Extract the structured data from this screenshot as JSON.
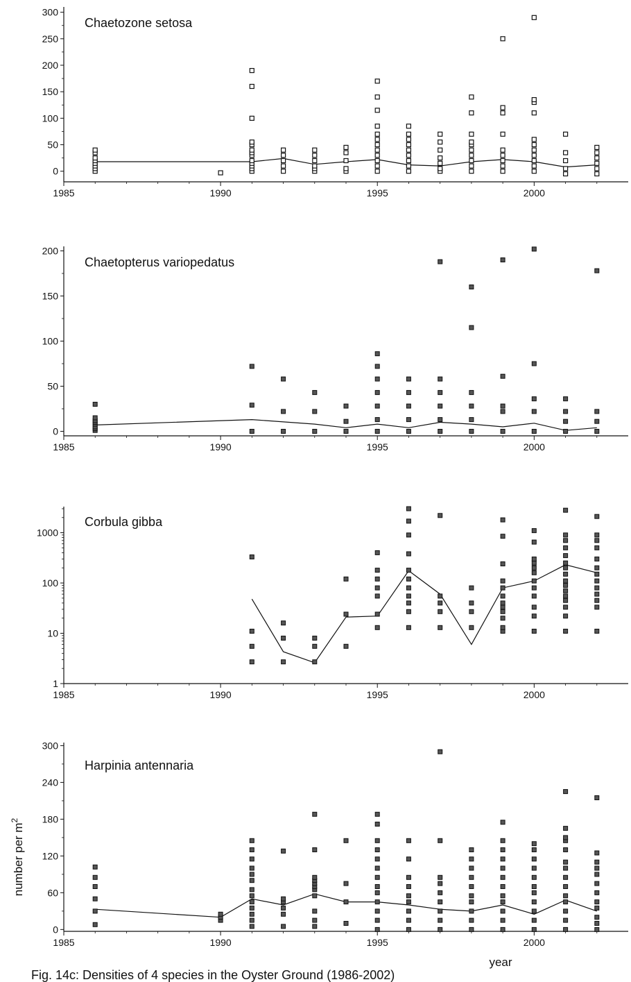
{
  "figure": {
    "y_axis_label": "number per m",
    "y_axis_label_superscript": "2",
    "x_axis_label": "year",
    "caption_visible_text": "Fig. 14c: Densities of 4 species in the Oyster Ground (1986-2002)"
  },
  "chart_data": [
    {
      "type": "scatter",
      "title": "Chaetozone setosa",
      "marker": "open-square",
      "yscale": "linear",
      "xlim": [
        1985,
        2003
      ],
      "ylim": [
        -20,
        310
      ],
      "xticks": [
        1985,
        1990,
        1995,
        2000
      ],
      "xtick_labels": [
        "1985",
        "1990",
        "1995",
        "2000"
      ],
      "yticks": [
        0,
        50,
        100,
        150,
        200,
        250,
        300
      ],
      "ytick_labels": [
        "0",
        "50",
        "100",
        "150",
        "200",
        "250",
        "300"
      ],
      "points": [
        {
          "year": 1986,
          "values": [
            0,
            5,
            10,
            15,
            20,
            25,
            35,
            40
          ]
        },
        {
          "year": 1990,
          "values": [
            -3
          ]
        },
        {
          "year": 1991,
          "values": [
            0,
            5,
            10,
            15,
            20,
            30,
            35,
            40,
            50,
            55,
            100,
            160,
            190
          ]
        },
        {
          "year": 1992,
          "values": [
            0,
            10,
            20,
            30,
            40
          ]
        },
        {
          "year": 1993,
          "values": [
            0,
            5,
            10,
            20,
            30,
            40
          ]
        },
        {
          "year": 1994,
          "values": [
            0,
            5,
            20,
            35,
            45
          ]
        },
        {
          "year": 1995,
          "values": [
            0,
            10,
            20,
            30,
            40,
            50,
            60,
            70,
            85,
            115,
            140,
            170
          ]
        },
        {
          "year": 1996,
          "values": [
            0,
            10,
            20,
            30,
            40,
            50,
            60,
            70,
            85
          ]
        },
        {
          "year": 1997,
          "values": [
            0,
            5,
            15,
            25,
            40,
            55,
            70
          ]
        },
        {
          "year": 1998,
          "values": [
            0,
            10,
            20,
            30,
            40,
            50,
            55,
            70,
            110,
            140
          ]
        },
        {
          "year": 1999,
          "values": [
            0,
            10,
            20,
            30,
            40,
            70,
            110,
            120,
            250
          ]
        },
        {
          "year": 2000,
          "values": [
            0,
            10,
            20,
            30,
            40,
            50,
            60,
            110,
            130,
            135,
            290
          ]
        },
        {
          "year": 2001,
          "values": [
            -5,
            5,
            20,
            35,
            70
          ]
        },
        {
          "year": 2002,
          "values": [
            -5,
            5,
            15,
            25,
            35,
            45
          ]
        }
      ],
      "mean_line": {
        "x": [
          1986,
          1991,
          1992,
          1993,
          1994,
          1995,
          1996,
          1997,
          1998,
          1999,
          2000,
          2001,
          2002
        ],
        "y": [
          18,
          18,
          24,
          13,
          18,
          22,
          12,
          10,
          18,
          22,
          18,
          8,
          12
        ]
      }
    },
    {
      "type": "scatter",
      "title": "Chaetopterus variopedatus",
      "marker": "filled-square",
      "yscale": "linear",
      "xlim": [
        1985,
        2003
      ],
      "ylim": [
        -5,
        205
      ],
      "xticks": [
        1985,
        1990,
        1995,
        2000
      ],
      "xtick_labels": [
        "1985",
        "1990",
        "1995",
        "2000"
      ],
      "yticks": [
        0,
        50,
        100,
        150,
        200
      ],
      "ytick_labels": [
        "0",
        "50",
        "100",
        "150",
        "200"
      ],
      "points": [
        {
          "year": 1986,
          "values": [
            1,
            3,
            5,
            8,
            10,
            12,
            15,
            30
          ]
        },
        {
          "year": 1991,
          "values": [
            0,
            29,
            72
          ]
        },
        {
          "year": 1992,
          "values": [
            0,
            22,
            58
          ]
        },
        {
          "year": 1993,
          "values": [
            0,
            22,
            43
          ]
        },
        {
          "year": 1994,
          "values": [
            0,
            11,
            28
          ]
        },
        {
          "year": 1995,
          "values": [
            0,
            13,
            28,
            43,
            58,
            72,
            86
          ]
        },
        {
          "year": 1996,
          "values": [
            0,
            13,
            28,
            43,
            58
          ]
        },
        {
          "year": 1997,
          "values": [
            0,
            13,
            28,
            43,
            58,
            188
          ]
        },
        {
          "year": 1998,
          "values": [
            0,
            13,
            28,
            43,
            115,
            160
          ]
        },
        {
          "year": 1999,
          "values": [
            0,
            22,
            28,
            61,
            190
          ]
        },
        {
          "year": 2000,
          "values": [
            0,
            22,
            36,
            75,
            202
          ]
        },
        {
          "year": 2001,
          "values": [
            0,
            11,
            22,
            36
          ]
        },
        {
          "year": 2002,
          "values": [
            0,
            11,
            22,
            178
          ]
        }
      ],
      "mean_line": {
        "x": [
          1986,
          1991,
          1993,
          1994,
          1995,
          1996,
          1997,
          1998,
          1999,
          2000,
          2001,
          2002
        ],
        "y": [
          7,
          13,
          8,
          4,
          8,
          4,
          10,
          8,
          5,
          9,
          1,
          4
        ]
      }
    },
    {
      "type": "scatter",
      "title": "Corbula gibba",
      "marker": "filled-square",
      "yscale": "log",
      "xlim": [
        1985,
        2003
      ],
      "ylim": [
        1,
        3300
      ],
      "xticks": [
        1985,
        1990,
        1995,
        2000
      ],
      "xtick_labels": [
        "1985",
        "1990",
        "1995",
        "2000"
      ],
      "yticks": [
        1,
        10,
        100,
        1000
      ],
      "ytick_labels": [
        "1",
        "10",
        "100",
        "1000"
      ],
      "points": [
        {
          "year": 1991,
          "values": [
            2.7,
            5.5,
            11,
            330
          ]
        },
        {
          "year": 1992,
          "values": [
            2.7,
            8,
            16
          ]
        },
        {
          "year": 1993,
          "values": [
            2.7,
            5.5,
            8
          ]
        },
        {
          "year": 1994,
          "values": [
            5.5,
            24,
            120
          ]
        },
        {
          "year": 1995,
          "values": [
            13,
            24,
            55,
            80,
            120,
            180,
            400
          ]
        },
        {
          "year": 1996,
          "values": [
            13,
            27,
            40,
            55,
            80,
            120,
            180,
            380,
            900,
            1700,
            3000
          ]
        },
        {
          "year": 1997,
          "values": [
            13,
            27,
            40,
            55,
            2200
          ]
        },
        {
          "year": 1998,
          "values": [
            13,
            27,
            40,
            80
          ]
        },
        {
          "year": 1999,
          "values": [
            11,
            13,
            20,
            27,
            33,
            40,
            55,
            80,
            110,
            240,
            850,
            1800
          ]
        },
        {
          "year": 2000,
          "values": [
            11,
            22,
            33,
            55,
            80,
            110,
            160,
            200,
            250,
            300,
            650,
            1100
          ]
        },
        {
          "year": 2001,
          "values": [
            11,
            22,
            33,
            45,
            55,
            70,
            90,
            110,
            150,
            200,
            250,
            350,
            500,
            700,
            900,
            2800
          ]
        },
        {
          "year": 2002,
          "values": [
            11,
            33,
            45,
            60,
            80,
            110,
            150,
            200,
            300,
            500,
            700,
            900,
            2100
          ]
        }
      ],
      "mean_line": {
        "x": [
          1991,
          1992,
          1993,
          1994,
          1995,
          1996,
          1997,
          1998,
          1999,
          2000,
          2001,
          2002
        ],
        "y": [
          48,
          4.3,
          2.6,
          21,
          22,
          175,
          60,
          6,
          80,
          110,
          230,
          160
        ]
      }
    },
    {
      "type": "scatter",
      "title": "Harpinia antennaria",
      "marker": "filled-square",
      "yscale": "linear",
      "xlim": [
        1985,
        2003
      ],
      "ylim": [
        -3,
        305
      ],
      "xticks": [
        1985,
        1990,
        1995,
        2000
      ],
      "xtick_labels": [
        "1985",
        "1990",
        "1995",
        "2000"
      ],
      "yticks": [
        0,
        60,
        120,
        180,
        240,
        300
      ],
      "ytick_labels": [
        "0",
        "60",
        "120",
        "180",
        "240",
        "300"
      ],
      "points": [
        {
          "year": 1986,
          "values": [
            8,
            30,
            50,
            70,
            85,
            102
          ]
        },
        {
          "year": 1990,
          "values": [
            15,
            20,
            25
          ]
        },
        {
          "year": 1991,
          "values": [
            5,
            15,
            25,
            35,
            45,
            55,
            65,
            80,
            90,
            100,
            115,
            130,
            145
          ]
        },
        {
          "year": 1992,
          "values": [
            5,
            25,
            35,
            45,
            50,
            128
          ]
        },
        {
          "year": 1993,
          "values": [
            5,
            15,
            30,
            55,
            65,
            70,
            75,
            80,
            85,
            130,
            188
          ]
        },
        {
          "year": 1994,
          "values": [
            10,
            45,
            75,
            145
          ]
        },
        {
          "year": 1995,
          "values": [
            0,
            15,
            30,
            45,
            60,
            70,
            85,
            100,
            115,
            130,
            145,
            172,
            188
          ]
        },
        {
          "year": 1996,
          "values": [
            0,
            15,
            30,
            45,
            55,
            70,
            85,
            115,
            145
          ]
        },
        {
          "year": 1997,
          "values": [
            0,
            15,
            30,
            45,
            60,
            75,
            85,
            145,
            290
          ]
        },
        {
          "year": 1998,
          "values": [
            0,
            15,
            30,
            45,
            55,
            70,
            85,
            100,
            115,
            130
          ]
        },
        {
          "year": 1999,
          "values": [
            0,
            15,
            30,
            45,
            55,
            70,
            85,
            100,
            115,
            130,
            145,
            175
          ]
        },
        {
          "year": 2000,
          "values": [
            0,
            15,
            30,
            45,
            60,
            70,
            85,
            100,
            115,
            130,
            140
          ]
        },
        {
          "year": 2001,
          "values": [
            0,
            15,
            30,
            45,
            55,
            70,
            85,
            100,
            110,
            130,
            145,
            150,
            165,
            225
          ]
        },
        {
          "year": 2002,
          "values": [
            0,
            10,
            20,
            35,
            45,
            60,
            75,
            90,
            100,
            110,
            125,
            215
          ]
        }
      ],
      "mean_line": {
        "x": [
          1986,
          1990,
          1991,
          1992,
          1993,
          1994,
          1995,
          1996,
          1997,
          1998,
          1999,
          2000,
          2001,
          2002
        ],
        "y": [
          33,
          20,
          50,
          40,
          58,
          45,
          45,
          40,
          33,
          30,
          40,
          25,
          48,
          30
        ]
      }
    }
  ]
}
